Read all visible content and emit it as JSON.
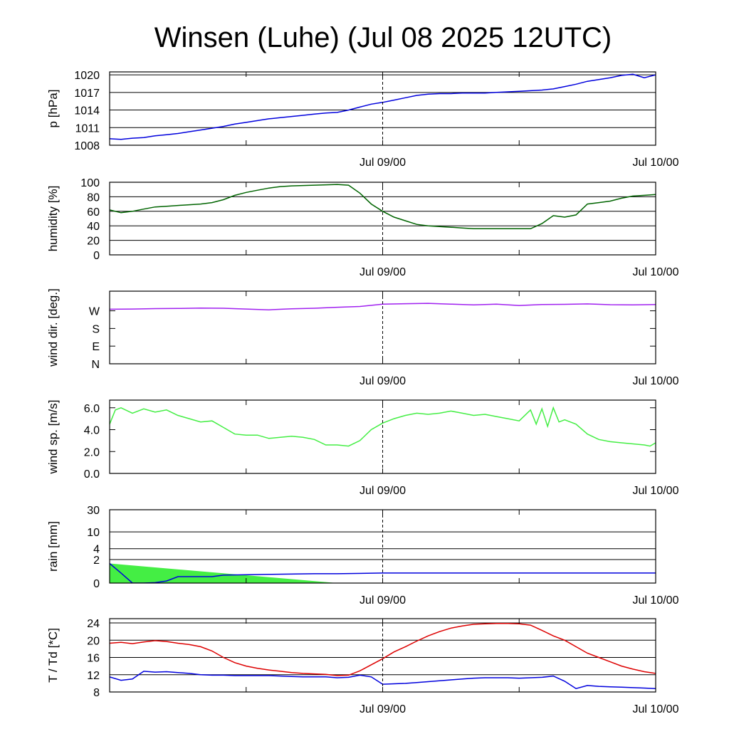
{
  "title": "Winsen (Luhe) (Jul 08 2025 12UTC)",
  "x_tick_labels": [
    "Jul 09/00",
    "Jul 10/00"
  ],
  "chart_data": [
    {
      "type": "line",
      "ylabel": "p [hPa]",
      "ylim": [
        1008,
        1020.5
      ],
      "yticks": [
        1008,
        1011,
        1014,
        1017,
        1020
      ],
      "ytick_labels": [
        "1008",
        "1011",
        "1014",
        "1017",
        "1020"
      ],
      "grid": true,
      "x_unit": "hours since Jul 08 12UTC",
      "series": [
        {
          "color": "#0000dd",
          "x": [
            0,
            1,
            2,
            3,
            4,
            5,
            6,
            7,
            8,
            9,
            10,
            11,
            12,
            13,
            14,
            15,
            16,
            17,
            18,
            19,
            20,
            21,
            22,
            23,
            24,
            25,
            26,
            27,
            28,
            29,
            30,
            31,
            32,
            33,
            34,
            35,
            36,
            37,
            38,
            39,
            40,
            41,
            42,
            43,
            44,
            45,
            46,
            47,
            48
          ],
          "y": [
            1009.1,
            1009.0,
            1009.2,
            1009.3,
            1009.6,
            1009.8,
            1010.0,
            1010.3,
            1010.6,
            1010.9,
            1011.2,
            1011.6,
            1011.9,
            1012.2,
            1012.5,
            1012.7,
            1012.9,
            1013.1,
            1013.3,
            1013.5,
            1013.6,
            1014.0,
            1014.5,
            1015.0,
            1015.3,
            1015.7,
            1016.1,
            1016.5,
            1016.7,
            1016.8,
            1016.8,
            1016.9,
            1016.9,
            1016.9,
            1017.0,
            1017.1,
            1017.2,
            1017.3,
            1017.4,
            1017.6,
            1018.0,
            1018.4,
            1018.9,
            1019.2,
            1019.5,
            1019.9,
            1020.1,
            1019.5,
            1020.0
          ]
        }
      ]
    },
    {
      "type": "line",
      "ylabel": "humidity [%]",
      "ylim": [
        0,
        100
      ],
      "yticks": [
        0,
        20,
        40,
        60,
        80,
        100
      ],
      "ytick_labels": [
        "0",
        "20",
        "40",
        "60",
        "80",
        "100"
      ],
      "grid": true,
      "series": [
        {
          "color": "#006400",
          "x": [
            0,
            1,
            2,
            3,
            4,
            5,
            6,
            7,
            8,
            9,
            10,
            11,
            12,
            13,
            14,
            15,
            16,
            17,
            18,
            19,
            20,
            21,
            22,
            23,
            24,
            25,
            26,
            27,
            28,
            29,
            30,
            31,
            32,
            33,
            34,
            35,
            36,
            37,
            38,
            39,
            40,
            41,
            42,
            43,
            44,
            45,
            46,
            47,
            48
          ],
          "y": [
            62,
            58,
            60,
            63,
            66,
            67,
            68,
            69,
            70,
            72,
            76,
            82,
            86,
            89,
            92,
            94,
            95,
            95.5,
            96,
            96.5,
            97,
            96,
            85,
            70,
            60,
            52,
            47,
            42,
            40,
            39,
            38,
            37,
            36,
            36,
            36,
            36,
            36,
            36,
            43,
            54,
            52,
            55,
            70,
            72,
            74,
            78,
            81,
            82,
            83
          ]
        }
      ]
    },
    {
      "type": "line",
      "ylabel": "wind dir. [deg.]",
      "ylim": [
        0,
        370
      ],
      "yticks": [
        0,
        90,
        180,
        270
      ],
      "ytick_labels": [
        "N",
        "E",
        "S",
        "W"
      ],
      "grid": false,
      "series": [
        {
          "color": "#a020f0",
          "x": [
            0,
            2,
            4,
            6,
            8,
            10,
            12,
            14,
            16,
            18,
            20,
            22,
            24,
            26,
            28,
            30,
            32,
            34,
            36,
            38,
            40,
            42,
            44,
            46,
            48
          ],
          "y": [
            278,
            279,
            281,
            282,
            284,
            283,
            279,
            275,
            280,
            283,
            288,
            292,
            304,
            306,
            308,
            304,
            300,
            304,
            297,
            302,
            303,
            305,
            301,
            300,
            302
          ]
        }
      ]
    },
    {
      "type": "line",
      "ylabel": "wind sp. [m/s]",
      "ylim": [
        0,
        6.7
      ],
      "yticks": [
        0,
        2,
        4,
        6
      ],
      "ytick_labels": [
        "0.0",
        "2.0",
        "4.0",
        "6.0"
      ],
      "grid": false,
      "series": [
        {
          "color": "#44ee44",
          "x": [
            0,
            0.5,
            1,
            2,
            3,
            4,
            5,
            6,
            7,
            8,
            9,
            10,
            11,
            12,
            13,
            14,
            15,
            16,
            17,
            18,
            19,
            20,
            21,
            22,
            23,
            24,
            25,
            26,
            27,
            28,
            29,
            30,
            31,
            32,
            33,
            34,
            35,
            36,
            37,
            37.5,
            38,
            38.5,
            39,
            39.5,
            40,
            41,
            42,
            43,
            44,
            45,
            46,
            47,
            47.5,
            48
          ],
          "y": [
            4.5,
            5.8,
            6.0,
            5.5,
            5.9,
            5.6,
            5.8,
            5.3,
            5.0,
            4.7,
            4.8,
            4.2,
            3.6,
            3.5,
            3.5,
            3.2,
            3.3,
            3.4,
            3.3,
            3.1,
            2.6,
            2.6,
            2.5,
            3.0,
            4.0,
            4.6,
            5.0,
            5.3,
            5.5,
            5.4,
            5.5,
            5.7,
            5.5,
            5.3,
            5.4,
            5.2,
            5.0,
            4.8,
            5.8,
            4.5,
            5.9,
            4.3,
            6.0,
            4.7,
            4.9,
            4.5,
            3.6,
            3.1,
            2.9,
            2.8,
            2.7,
            2.6,
            2.5,
            2.8
          ]
        }
      ]
    },
    {
      "type": "area",
      "ylabel": "rain [mm]",
      "ylim": [
        0,
        30
      ],
      "yticks": [
        0,
        2,
        4,
        10,
        30
      ],
      "ytick_labels": [
        "0",
        "2",
        "4",
        "10",
        "30"
      ],
      "grid": true,
      "series": [
        {
          "kind": "area",
          "color": "#44ee44",
          "x": [
            0,
            20
          ],
          "y": [
            1.5,
            0
          ]
        },
        {
          "kind": "line",
          "color": "#0000dd",
          "x": [
            0,
            1,
            2,
            3,
            4,
            5,
            6,
            7,
            8,
            9,
            10,
            14,
            18,
            20,
            24,
            48
          ],
          "y": [
            1.5,
            0.6,
            0.0,
            0.0,
            0.02,
            0.1,
            0.35,
            0.35,
            0.35,
            0.35,
            0.45,
            0.5,
            0.55,
            0.55,
            0.6,
            0.6
          ]
        }
      ]
    },
    {
      "type": "line",
      "ylabel": "T / Td [*C]",
      "ylim": [
        8,
        25
      ],
      "yticks": [
        8,
        12,
        16,
        20,
        24
      ],
      "ytick_labels": [
        "8",
        "12",
        "16",
        "20",
        "24"
      ],
      "grid": true,
      "series": [
        {
          "color": "#dd0000",
          "x": [
            0,
            1,
            2,
            3,
            4,
            5,
            6,
            7,
            8,
            9,
            10,
            11,
            12,
            13,
            14,
            15,
            16,
            17,
            18,
            19,
            20,
            21,
            22,
            23,
            24,
            25,
            26,
            27,
            28,
            29,
            30,
            31,
            32,
            33,
            34,
            35,
            36,
            37,
            38,
            39,
            40,
            41,
            42,
            43,
            44,
            45,
            46,
            47,
            48
          ],
          "y": [
            19.3,
            19.5,
            19.2,
            19.6,
            19.9,
            19.7,
            19.3,
            19.0,
            18.5,
            17.5,
            16.0,
            14.8,
            14.0,
            13.5,
            13.1,
            12.8,
            12.5,
            12.3,
            12.2,
            12.1,
            11.8,
            11.9,
            12.9,
            14.3,
            15.7,
            17.3,
            18.5,
            19.8,
            21.0,
            22.0,
            22.8,
            23.3,
            23.7,
            23.8,
            23.9,
            23.9,
            23.8,
            23.5,
            22.3,
            21.0,
            20.0,
            18.5,
            17.0,
            16.0,
            15.0,
            14.0,
            13.3,
            12.7,
            12.3
          ]
        },
        {
          "color": "#0000dd",
          "x": [
            0,
            1,
            2,
            3,
            4,
            5,
            6,
            7,
            8,
            9,
            10,
            11,
            12,
            13,
            14,
            15,
            16,
            17,
            18,
            19,
            20,
            21,
            22,
            23,
            24,
            25,
            26,
            27,
            28,
            29,
            30,
            31,
            32,
            33,
            34,
            35,
            36,
            37,
            38,
            39,
            40,
            41,
            42,
            43,
            44,
            45,
            46,
            47,
            48
          ],
          "y": [
            11.5,
            10.7,
            11.0,
            12.8,
            12.6,
            12.7,
            12.5,
            12.3,
            12.0,
            11.9,
            11.9,
            11.8,
            11.8,
            11.8,
            11.8,
            11.7,
            11.6,
            11.5,
            11.5,
            11.5,
            11.3,
            11.4,
            11.9,
            11.5,
            9.8,
            9.9,
            10.0,
            10.2,
            10.4,
            10.6,
            10.8,
            11.0,
            11.2,
            11.3,
            11.3,
            11.3,
            11.2,
            11.3,
            11.4,
            11.7,
            10.5,
            8.8,
            9.5,
            9.3,
            9.2,
            9.1,
            9.0,
            8.9,
            8.8
          ]
        }
      ]
    }
  ]
}
